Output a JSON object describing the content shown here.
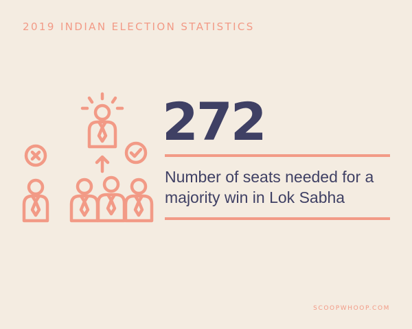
{
  "header": {
    "title": "2019 INDIAN ELECTION STATISTICS"
  },
  "stat": {
    "value": "272",
    "description": "Number of seats needed for a majority win in Lok Sabha"
  },
  "footer": {
    "credit": "SCOOPWHOOP.COM"
  },
  "illustration": {
    "icons": [
      "elected-person-icon",
      "rejected-person-icon",
      "reject-mark-icon",
      "approve-mark-icon",
      "up-arrow-icon",
      "voter-group-icon"
    ]
  },
  "colors": {
    "background": "#f4ece1",
    "accent": "#f29a86",
    "text": "#3f4064"
  }
}
